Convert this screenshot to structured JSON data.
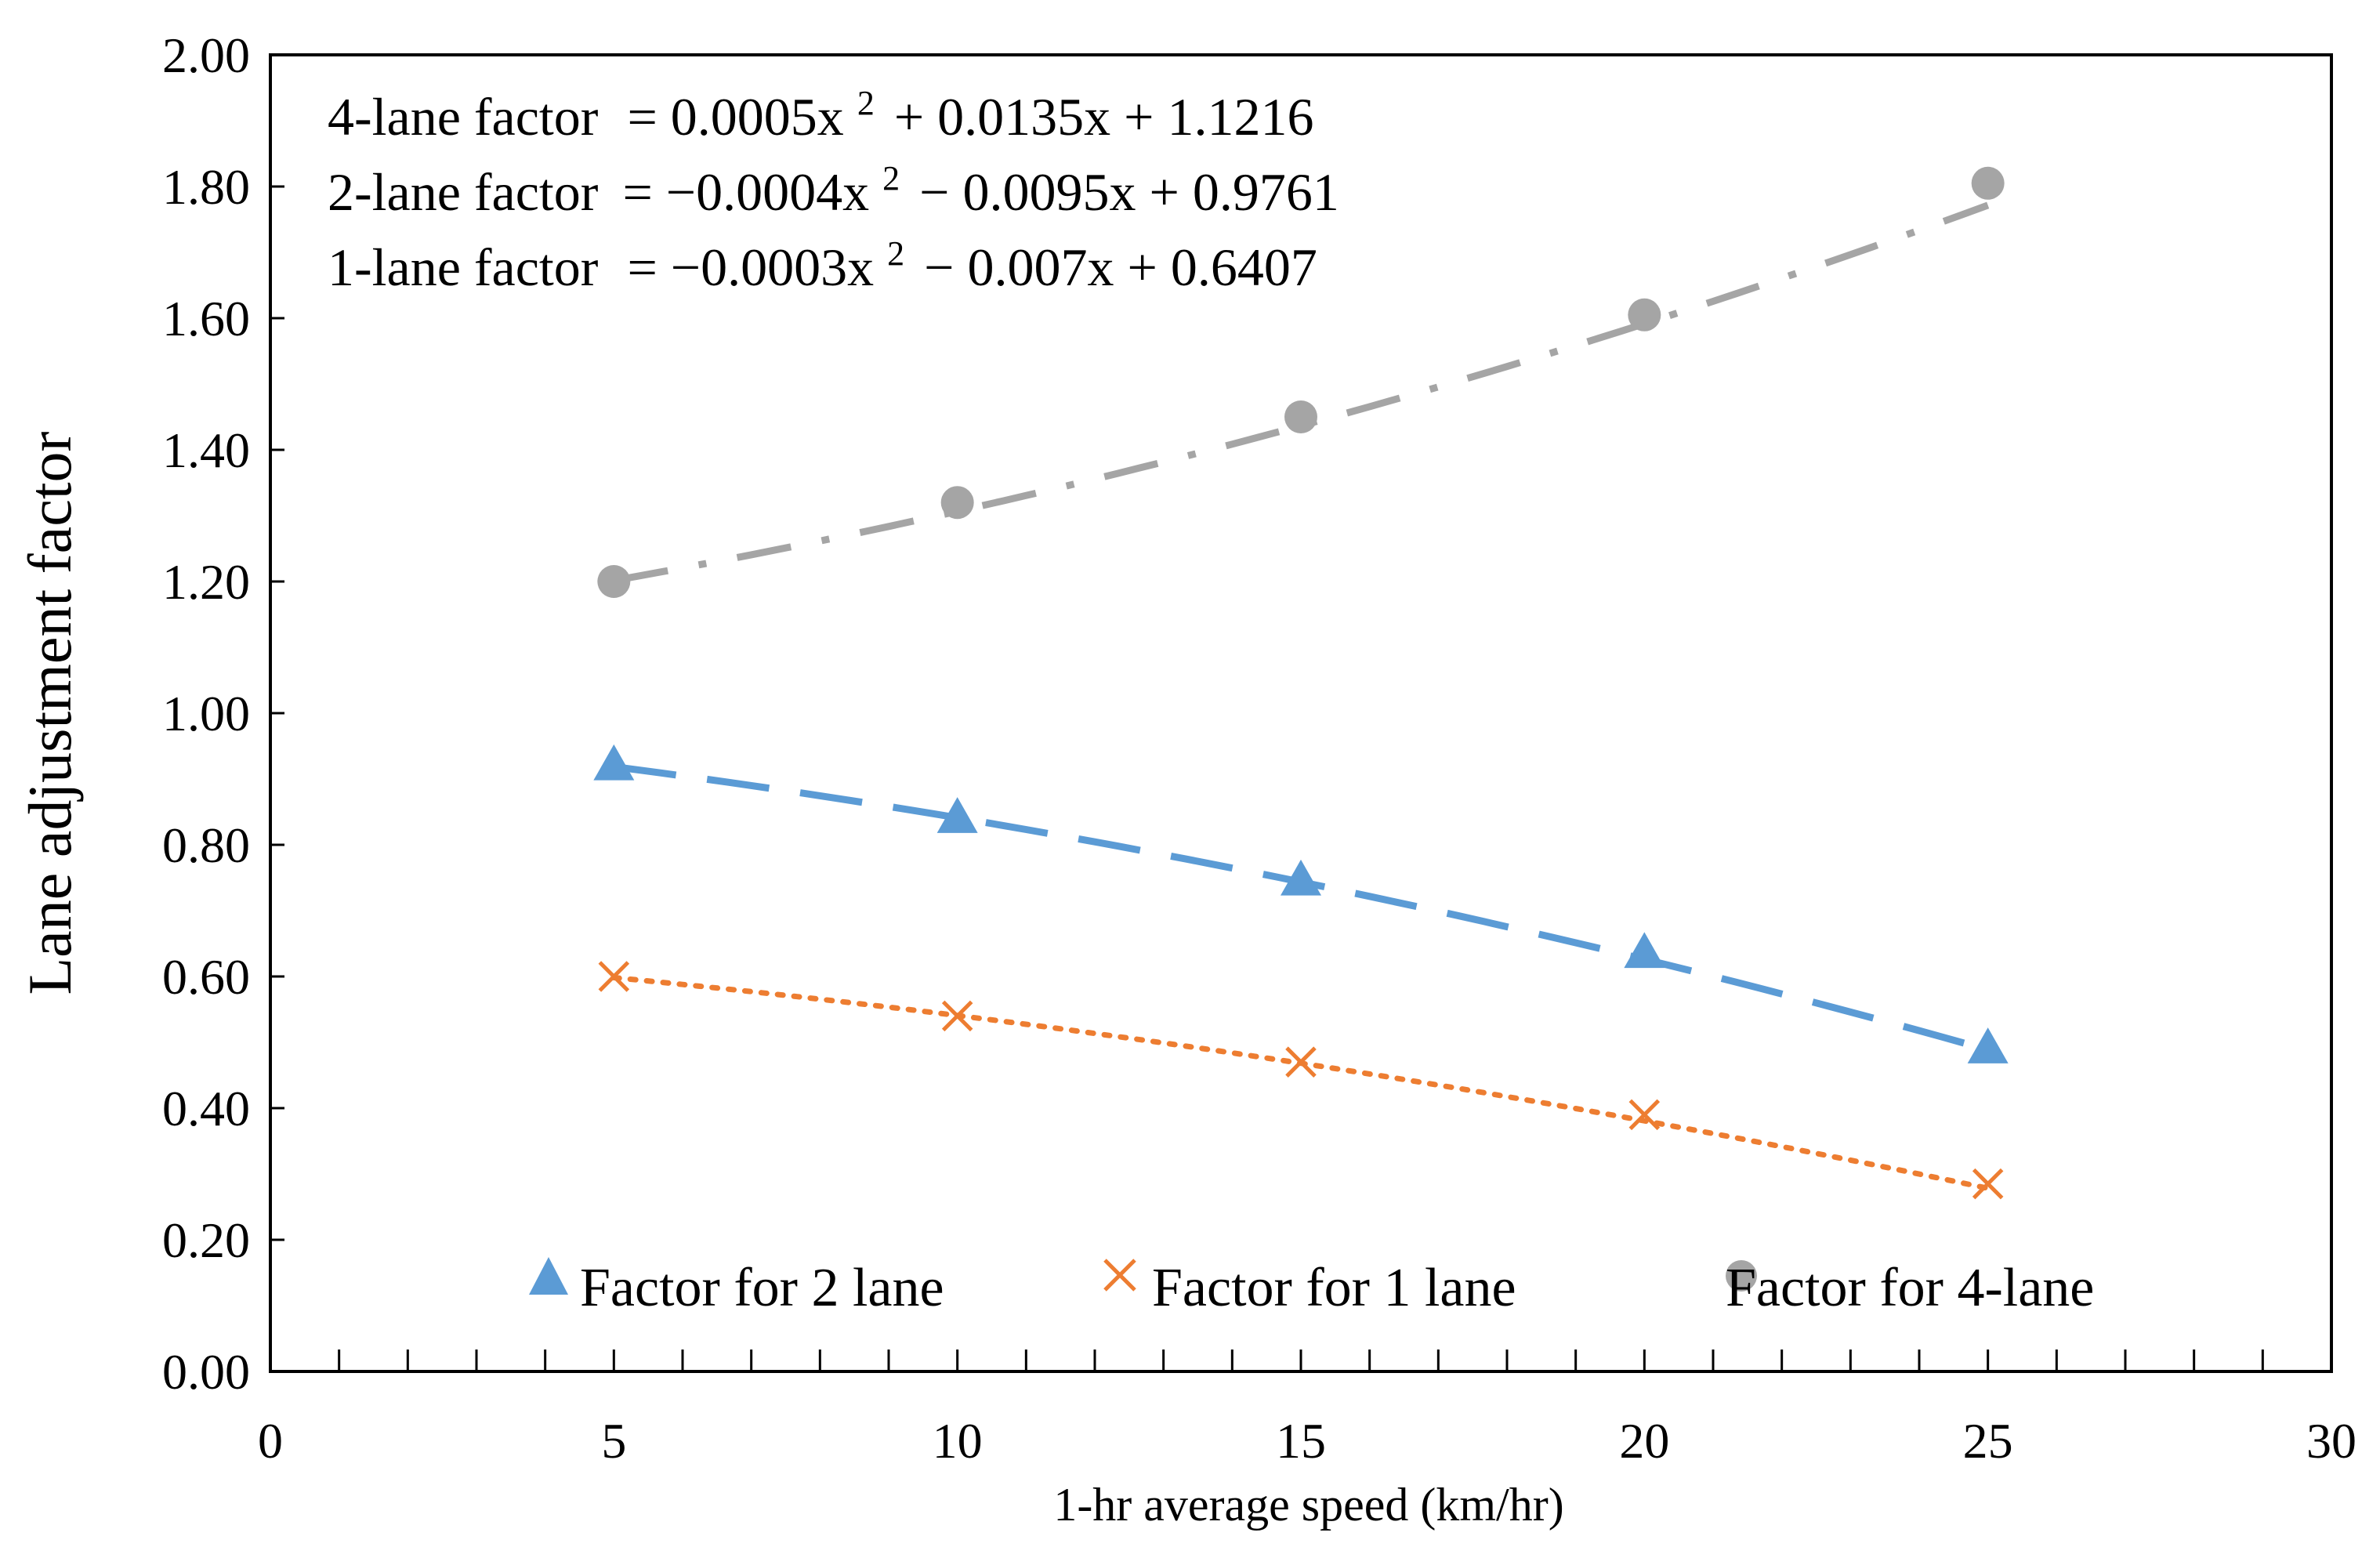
{
  "chart_data": {
    "type": "scatter",
    "title": "",
    "xlabel": "1-hr average speed (km/hr)",
    "ylabel": "Lane adjustment factor",
    "xlim": [
      0,
      30
    ],
    "ylim": [
      0,
      2
    ],
    "x_major_ticks": [
      0,
      5,
      10,
      15,
      20,
      25,
      30
    ],
    "x_tick_labels": [
      "0",
      "5",
      "10",
      "15",
      "20",
      "25",
      "30"
    ],
    "x_minor_step": 1,
    "y_ticks": [
      0,
      0.2,
      0.4,
      0.6,
      0.8,
      1.0,
      1.2,
      1.4,
      1.6,
      1.8,
      2.0
    ],
    "y_tick_labels": [
      "0.00",
      "0.20",
      "0.40",
      "0.60",
      "0.80",
      "1.00",
      "1.20",
      "1.40",
      "1.60",
      "1.80",
      "2.00"
    ],
    "grid": false,
    "legend_position": "bottom",
    "series": [
      {
        "name": "Factor for 2 lane",
        "marker": "triangle",
        "color": "#5B9BD5",
        "trendline": "dashed",
        "x": [
          5,
          10,
          15,
          20,
          25
        ],
        "y": [
          0.92,
          0.84,
          0.745,
          0.635,
          0.49
        ],
        "fit": {
          "a": -0.0004,
          "b": -0.0095,
          "c": 0.9761
        }
      },
      {
        "name": "Factor for 1 lane",
        "marker": "x",
        "color": "#ED7D31",
        "trendline": "dotted",
        "x": [
          5,
          10,
          15,
          20,
          25
        ],
        "y": [
          0.6,
          0.54,
          0.47,
          0.39,
          0.285
        ],
        "fit": {
          "a": -0.0003,
          "b": -0.007,
          "c": 0.6407
        }
      },
      {
        "name": "Factor for 4-lane",
        "marker": "circle",
        "color": "#A5A5A5",
        "trendline": "dashdot",
        "x": [
          5,
          10,
          15,
          20,
          25
        ],
        "y": [
          1.2,
          1.32,
          1.45,
          1.605,
          1.805
        ],
        "fit": {
          "a": 0.0005,
          "b": 0.0135,
          "c": 1.1216
        }
      }
    ],
    "annotations": [
      {
        "lhs": "4-lane factor",
        "rhs": "= 0.0005x",
        "sup": "2",
        "rest": "+ 0.0135x + 1.1216"
      },
      {
        "lhs": "2-lane  factor",
        "rhs": "= −0.0004x",
        "sup": "2",
        "rest": "− 0.0095x + 0.9761"
      },
      {
        "lhs": "1-lane factor",
        "rhs": "= −0.0003x",
        "sup": "2",
        "rest": "− 0.007x + 0.6407"
      }
    ]
  }
}
